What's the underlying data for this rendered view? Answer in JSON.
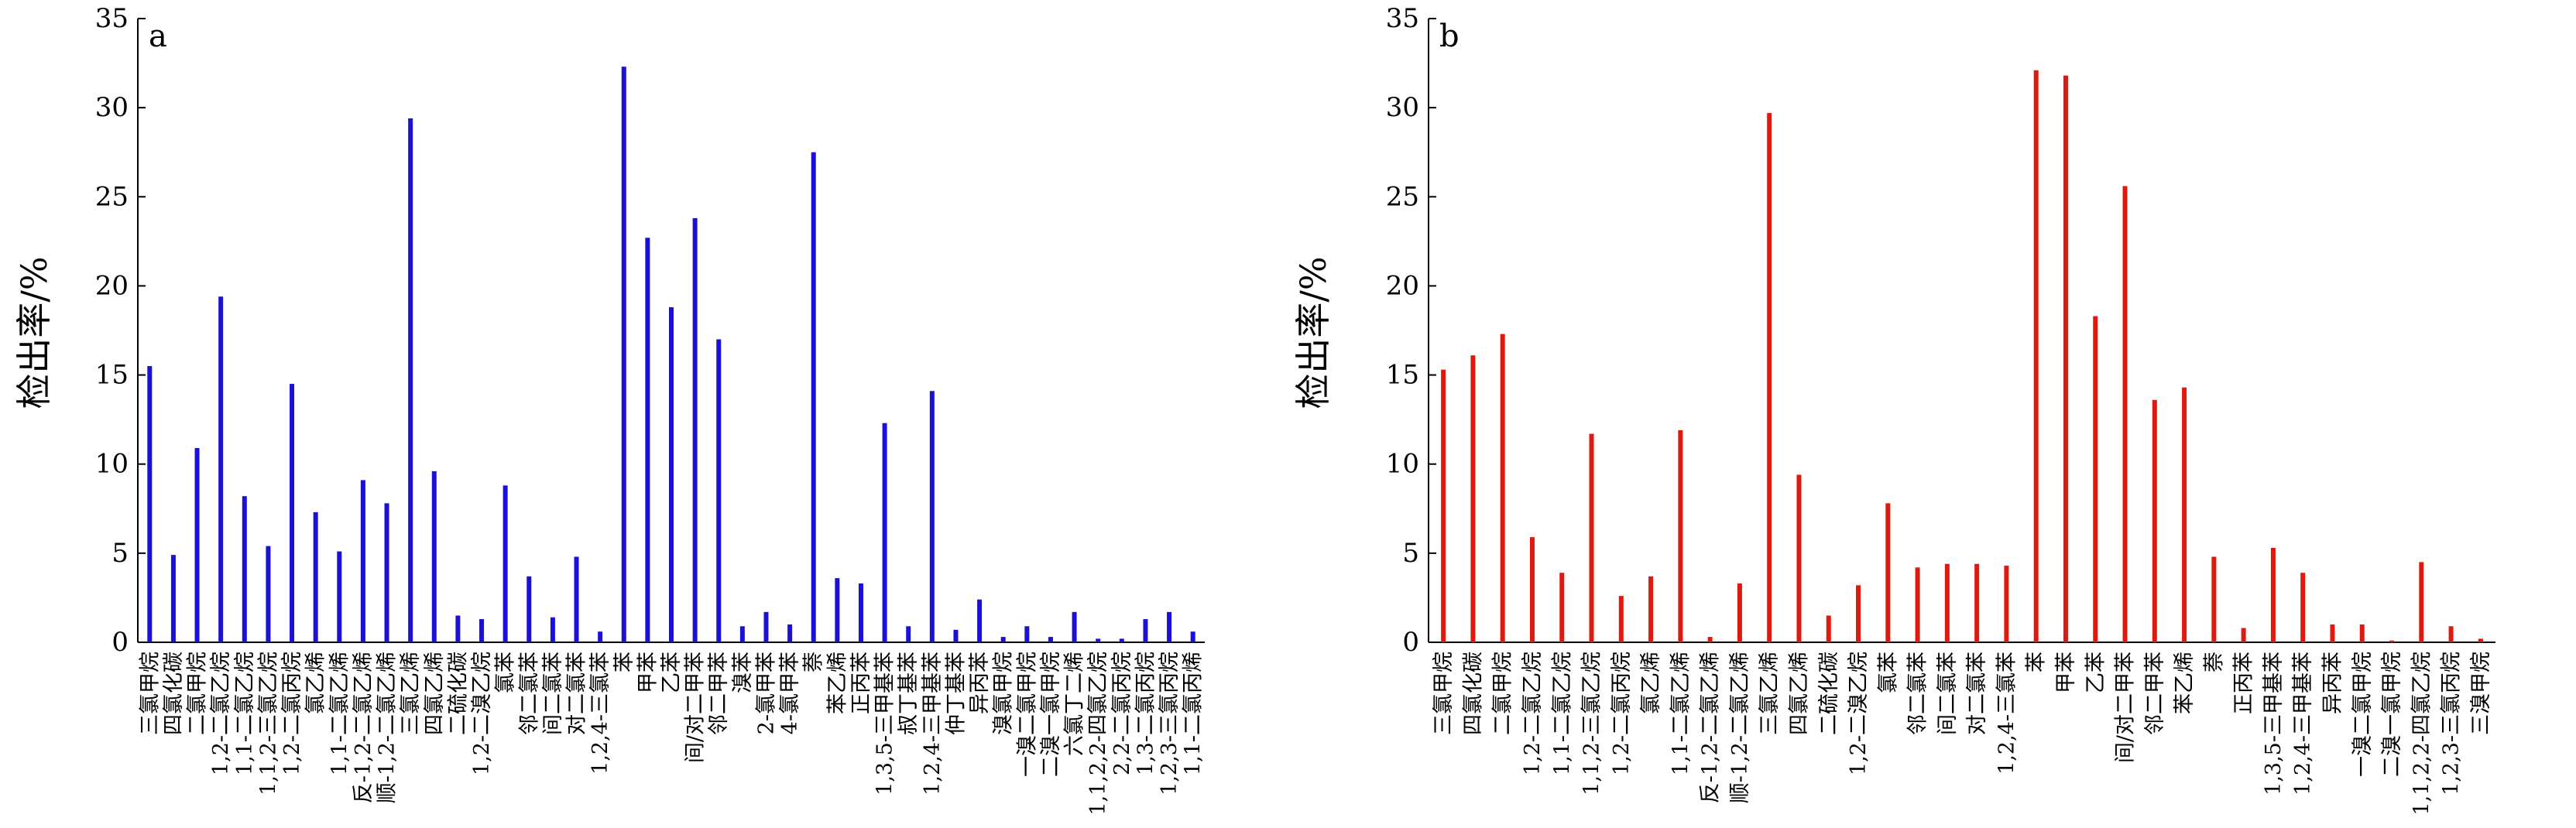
{
  "chart_data": [
    {
      "type": "bar",
      "panel_label": "a",
      "ylabel": "检出率/%",
      "ylim": [
        0,
        35
      ],
      "yticks": [
        0,
        5,
        10,
        15,
        20,
        25,
        30,
        35
      ],
      "grid": false,
      "bar_color": "#1a10d8",
      "categories": [
        "三氯甲烷",
        "四氯化碳",
        "二氯甲烷",
        "1,2-二氯乙烷",
        "1,1-二氯乙烷",
        "1,1,2-三氯乙烷",
        "1,2-二氯丙烷",
        "氯乙烯",
        "1,1-二氯乙烯",
        "反-1,2-二氯乙烯",
        "顺-1,2-二氯乙烯",
        "三氯乙烯",
        "四氯乙烯",
        "二硫化碳",
        "1,2-二溴乙烷",
        "氯苯",
        "邻二氯苯",
        "间二氯苯",
        "对二氯苯",
        "1,2,4-三氯苯",
        "苯",
        "甲苯",
        "乙苯",
        "间/对二甲苯",
        "邻二甲苯",
        "溴苯",
        "2-氯甲苯",
        "4-氯甲苯",
        "萘",
        "苯乙烯",
        "正丙苯",
        "1,3,5-三甲基苯",
        "叔丁基苯",
        "1,2,4-三甲基苯",
        "仲丁基苯",
        "异丙苯",
        "溴氯甲烷",
        "一溴二氯甲烷",
        "二溴一氯甲烷",
        "六氯丁二烯",
        "1,1,2,2-四氯乙烷",
        "2,2-二氯丙烷",
        "1,3-二氯丙烷",
        "1,2,3-三氯丙烷",
        "1,1-二氯丙烯"
      ],
      "values": [
        15.5,
        4.9,
        10.9,
        19.4,
        8.2,
        5.4,
        14.5,
        7.3,
        5.1,
        9.1,
        7.8,
        29.4,
        9.6,
        1.5,
        1.3,
        8.8,
        3.7,
        1.4,
        4.8,
        0.6,
        32.3,
        22.7,
        18.8,
        23.8,
        17.0,
        0.9,
        1.7,
        1.0,
        27.5,
        3.6,
        3.3,
        12.3,
        0.9,
        14.1,
        0.7,
        2.4,
        0.3,
        0.9,
        0.3,
        1.7,
        0.2,
        0.2,
        1.3,
        1.7,
        0.6
      ]
    },
    {
      "type": "bar",
      "panel_label": "b",
      "ylabel": "检出率/%",
      "ylim": [
        0,
        35
      ],
      "yticks": [
        0,
        5,
        10,
        15,
        20,
        25,
        30,
        35
      ],
      "grid": false,
      "bar_color": "#e0190f",
      "categories": [
        "三氯甲烷",
        "四氯化碳",
        "二氯甲烷",
        "1,2-二氯乙烷",
        "1,1-二氯乙烷",
        "1,1,2-三氯乙烷",
        "1,2-二氯丙烷",
        "氯乙烯",
        "1,1-二氯乙烯",
        "反-1,2-二氯乙烯",
        "顺-1,2-二氯乙烯",
        "三氯乙烯",
        "四氯乙烯",
        "二硫化碳",
        "1,2-二溴乙烷",
        "氯苯",
        "邻二氯苯",
        "间二氯苯",
        "对二氯苯",
        "1,2,4-三氯苯",
        "苯",
        "甲苯",
        "乙苯",
        "间/对二甲苯",
        "邻二甲苯",
        "苯乙烯",
        "萘",
        "正丙苯",
        "1,3,5-三甲基苯",
        "1,2,4-三甲基苯",
        "异丙苯",
        "一溴二氯甲烷",
        "二溴一氯甲烷",
        "1,1,2,2-四氯乙烷",
        "1,2,3-三氯丙烷",
        "三溴甲烷"
      ],
      "values": [
        15.3,
        16.1,
        17.3,
        5.9,
        3.9,
        11.7,
        2.6,
        3.7,
        11.9,
        0.3,
        3.3,
        29.7,
        9.4,
        1.5,
        3.2,
        7.8,
        4.2,
        4.4,
        4.4,
        4.3,
        32.1,
        31.8,
        18.3,
        25.6,
        13.6,
        14.3,
        4.8,
        0.8,
        5.3,
        3.9,
        1.0,
        1.0,
        0.1,
        4.5,
        0.9,
        0.2
      ]
    }
  ]
}
